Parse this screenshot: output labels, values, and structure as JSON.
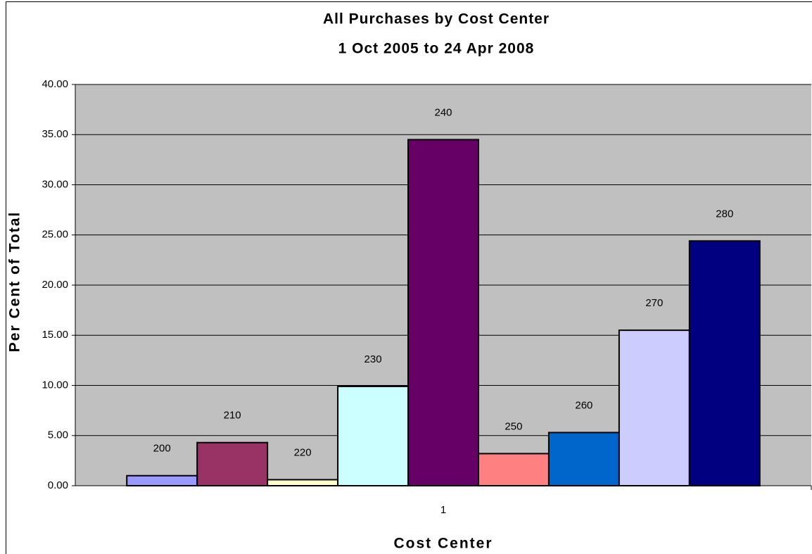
{
  "chart_data": {
    "type": "bar",
    "title": "All Purchases by Cost Center",
    "subtitle": "1 Oct 2005 to 24 Apr 2008",
    "x_label": "Cost Center",
    "y_label": "Per Cent of Total",
    "categories": [
      "1"
    ],
    "series": [
      {
        "name": "200",
        "color": "#9999ff",
        "values": [
          1.0
        ]
      },
      {
        "name": "210",
        "color": "#993366",
        "values": [
          4.3
        ]
      },
      {
        "name": "220",
        "color": "#ffffcc",
        "values": [
          0.6
        ]
      },
      {
        "name": "230",
        "color": "#ccffff",
        "values": [
          9.9
        ]
      },
      {
        "name": "240",
        "color": "#660066",
        "values": [
          34.5
        ]
      },
      {
        "name": "250",
        "color": "#ff8080",
        "values": [
          3.2
        ]
      },
      {
        "name": "260",
        "color": "#0066cc",
        "values": [
          5.3
        ]
      },
      {
        "name": "270",
        "color": "#ccccff",
        "values": [
          15.5
        ]
      },
      {
        "name": "280",
        "color": "#000080",
        "values": [
          24.4
        ]
      }
    ],
    "ylim": [
      0,
      40
    ],
    "yticks": [
      {
        "value": 0,
        "label": "0.00"
      },
      {
        "value": 5,
        "label": "5.00"
      },
      {
        "value": 10,
        "label": "10.00"
      },
      {
        "value": 15,
        "label": "15.00"
      },
      {
        "value": 20,
        "label": "20.00"
      },
      {
        "value": 25,
        "label": "25.00"
      },
      {
        "value": 30,
        "label": "30.00"
      },
      {
        "value": 35,
        "label": "35.00"
      },
      {
        "value": 40,
        "label": "40.00"
      }
    ],
    "grid": true
  }
}
